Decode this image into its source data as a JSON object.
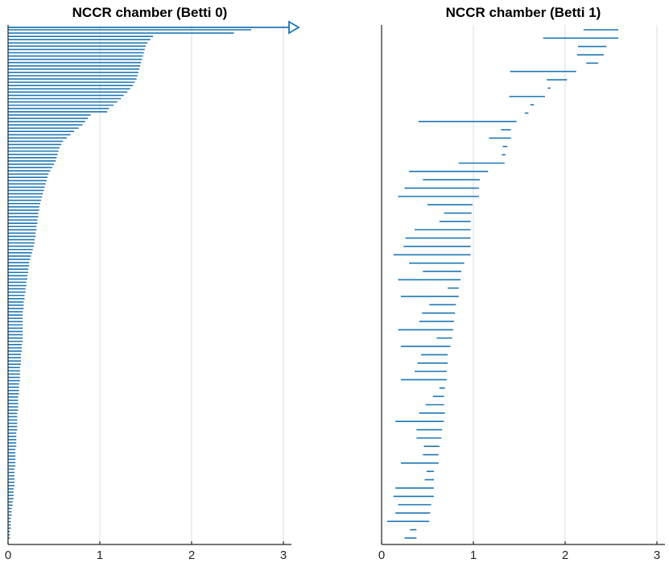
{
  "chart_data": [
    {
      "type": "barcode",
      "title": "NCCR chamber (Betti 0)",
      "xlim": [
        0,
        3.1
      ],
      "xticks": [
        0,
        1,
        2,
        3
      ],
      "grid": "vertical",
      "color": "#1f77b4",
      "infinite_bar_start": 0,
      "bars": [
        [
          0,
          2.65
        ],
        [
          0,
          2.46
        ],
        [
          0,
          1.58
        ],
        [
          0,
          1.55
        ],
        [
          0,
          1.52
        ],
        [
          0,
          1.5
        ],
        [
          0,
          1.49
        ],
        [
          0,
          1.48
        ],
        [
          0,
          1.47
        ],
        [
          0,
          1.46
        ],
        [
          0,
          1.45
        ],
        [
          0,
          1.44
        ],
        [
          0,
          1.43
        ],
        [
          0,
          1.42
        ],
        [
          0,
          1.41
        ],
        [
          0,
          1.4
        ],
        [
          0,
          1.38
        ],
        [
          0,
          1.36
        ],
        [
          0,
          1.33
        ],
        [
          0,
          1.3
        ],
        [
          0,
          1.26
        ],
        [
          0,
          1.23
        ],
        [
          0,
          1.19
        ],
        [
          0,
          1.15
        ],
        [
          0,
          1.1
        ],
        [
          0,
          1.08
        ],
        [
          0,
          0.9
        ],
        [
          0,
          0.87
        ],
        [
          0,
          0.84
        ],
        [
          0,
          0.81
        ],
        [
          0,
          0.77
        ],
        [
          0,
          0.72
        ],
        [
          0,
          0.68
        ],
        [
          0,
          0.64
        ],
        [
          0,
          0.6
        ],
        [
          0,
          0.58
        ],
        [
          0,
          0.56
        ],
        [
          0,
          0.55
        ],
        [
          0,
          0.54
        ],
        [
          0,
          0.53
        ],
        [
          0,
          0.52
        ],
        [
          0,
          0.5
        ],
        [
          0,
          0.48
        ],
        [
          0,
          0.46
        ],
        [
          0,
          0.44
        ],
        [
          0,
          0.43
        ],
        [
          0,
          0.42
        ],
        [
          0,
          0.41
        ],
        [
          0,
          0.4
        ],
        [
          0,
          0.39
        ],
        [
          0,
          0.38
        ],
        [
          0,
          0.37
        ],
        [
          0,
          0.36
        ],
        [
          0,
          0.35
        ],
        [
          0,
          0.34
        ],
        [
          0,
          0.34
        ],
        [
          0,
          0.33
        ],
        [
          0,
          0.33
        ],
        [
          0,
          0.32
        ],
        [
          0,
          0.32
        ],
        [
          0,
          0.31
        ],
        [
          0,
          0.31
        ],
        [
          0,
          0.3
        ],
        [
          0,
          0.3
        ],
        [
          0,
          0.29
        ],
        [
          0,
          0.29
        ],
        [
          0,
          0.28
        ],
        [
          0,
          0.27
        ],
        [
          0,
          0.26
        ],
        [
          0,
          0.25
        ],
        [
          0,
          0.24
        ],
        [
          0,
          0.23
        ],
        [
          0,
          0.23
        ],
        [
          0,
          0.22
        ],
        [
          0,
          0.22
        ],
        [
          0,
          0.21
        ],
        [
          0,
          0.21
        ],
        [
          0,
          0.2
        ],
        [
          0,
          0.2
        ],
        [
          0,
          0.19
        ],
        [
          0,
          0.19
        ],
        [
          0,
          0.18
        ],
        [
          0,
          0.18
        ],
        [
          0,
          0.17
        ],
        [
          0,
          0.17
        ],
        [
          0,
          0.17
        ],
        [
          0,
          0.16
        ],
        [
          0,
          0.16
        ],
        [
          0,
          0.16
        ],
        [
          0,
          0.16
        ],
        [
          0,
          0.16
        ],
        [
          0,
          0.16
        ],
        [
          0,
          0.16
        ],
        [
          0,
          0.16
        ],
        [
          0,
          0.16
        ],
        [
          0,
          0.16
        ],
        [
          0,
          0.15
        ],
        [
          0,
          0.15
        ],
        [
          0,
          0.15
        ],
        [
          0,
          0.14
        ],
        [
          0,
          0.14
        ],
        [
          0,
          0.14
        ],
        [
          0,
          0.14
        ],
        [
          0,
          0.13
        ],
        [
          0,
          0.13
        ],
        [
          0,
          0.13
        ],
        [
          0,
          0.13
        ],
        [
          0,
          0.13
        ],
        [
          0,
          0.12
        ],
        [
          0,
          0.12
        ],
        [
          0,
          0.12
        ],
        [
          0,
          0.12
        ],
        [
          0,
          0.11
        ],
        [
          0,
          0.11
        ],
        [
          0,
          0.11
        ],
        [
          0,
          0.11
        ],
        [
          0,
          0.11
        ],
        [
          0,
          0.1
        ],
        [
          0,
          0.1
        ],
        [
          0,
          0.1
        ],
        [
          0,
          0.1
        ],
        [
          0,
          0.1
        ],
        [
          0,
          0.1
        ],
        [
          0,
          0.09
        ],
        [
          0,
          0.09
        ],
        [
          0,
          0.09
        ],
        [
          0,
          0.09
        ],
        [
          0,
          0.09
        ],
        [
          0,
          0.08
        ],
        [
          0,
          0.08
        ],
        [
          0,
          0.08
        ],
        [
          0,
          0.08
        ],
        [
          0,
          0.08
        ],
        [
          0,
          0.08
        ],
        [
          0,
          0.07
        ],
        [
          0,
          0.07
        ],
        [
          0,
          0.07
        ],
        [
          0,
          0.07
        ],
        [
          0,
          0.07
        ],
        [
          0,
          0.07
        ],
        [
          0,
          0.06
        ],
        [
          0,
          0.06
        ],
        [
          0,
          0.06
        ],
        [
          0,
          0.06
        ],
        [
          0,
          0.05
        ],
        [
          0,
          0.05
        ],
        [
          0,
          0.04
        ],
        [
          0,
          0.04
        ],
        [
          0,
          0.04
        ],
        [
          0,
          0.03
        ],
        [
          0,
          0.03
        ],
        [
          0,
          0.03
        ],
        [
          0,
          0.03
        ],
        [
          0,
          0.02
        ],
        [
          0,
          0.02
        ],
        [
          0,
          0.02
        ]
      ]
    },
    {
      "type": "barcode",
      "title": "NCCR chamber (Betti 1)",
      "xlim": [
        0,
        3.1
      ],
      "xticks": [
        0,
        1,
        2,
        3
      ],
      "grid": "vertical",
      "color": "#1f77b4",
      "bars": [
        [
          2.2,
          2.58
        ],
        [
          1.76,
          2.58
        ],
        [
          2.14,
          2.45
        ],
        [
          2.13,
          2.42
        ],
        [
          2.23,
          2.36
        ],
        [
          1.4,
          2.12
        ],
        [
          1.8,
          2.02
        ],
        [
          1.81,
          1.84
        ],
        [
          1.39,
          1.78
        ],
        [
          1.62,
          1.66
        ],
        [
          1.56,
          1.6
        ],
        [
          0.4,
          1.47
        ],
        [
          1.3,
          1.41
        ],
        [
          1.17,
          1.41
        ],
        [
          1.32,
          1.37
        ],
        [
          1.31,
          1.35
        ],
        [
          0.84,
          1.34
        ],
        [
          0.3,
          1.16
        ],
        [
          0.45,
          1.07
        ],
        [
          0.25,
          1.06
        ],
        [
          0.18,
          1.06
        ],
        [
          0.5,
          0.99
        ],
        [
          0.68,
          0.98
        ],
        [
          0.63,
          0.97
        ],
        [
          0.36,
          0.97
        ],
        [
          0.26,
          0.97
        ],
        [
          0.24,
          0.97
        ],
        [
          0.13,
          0.97
        ],
        [
          0.3,
          0.9
        ],
        [
          0.45,
          0.87
        ],
        [
          0.18,
          0.86
        ],
        [
          0.72,
          0.84
        ],
        [
          0.21,
          0.84
        ],
        [
          0.52,
          0.81
        ],
        [
          0.44,
          0.8
        ],
        [
          0.41,
          0.79
        ],
        [
          0.18,
          0.78
        ],
        [
          0.6,
          0.77
        ],
        [
          0.21,
          0.75
        ],
        [
          0.43,
          0.72
        ],
        [
          0.39,
          0.72
        ],
        [
          0.36,
          0.71
        ],
        [
          0.21,
          0.71
        ],
        [
          0.63,
          0.69
        ],
        [
          0.56,
          0.68
        ],
        [
          0.48,
          0.68
        ],
        [
          0.41,
          0.69
        ],
        [
          0.15,
          0.68
        ],
        [
          0.38,
          0.66
        ],
        [
          0.38,
          0.65
        ],
        [
          0.46,
          0.63
        ],
        [
          0.45,
          0.62
        ],
        [
          0.21,
          0.62
        ],
        [
          0.49,
          0.57
        ],
        [
          0.47,
          0.57
        ],
        [
          0.15,
          0.57
        ],
        [
          0.13,
          0.57
        ],
        [
          0.18,
          0.54
        ],
        [
          0.15,
          0.53
        ],
        [
          0.06,
          0.52
        ],
        [
          0.31,
          0.38
        ],
        [
          0.25,
          0.38
        ]
      ]
    }
  ]
}
